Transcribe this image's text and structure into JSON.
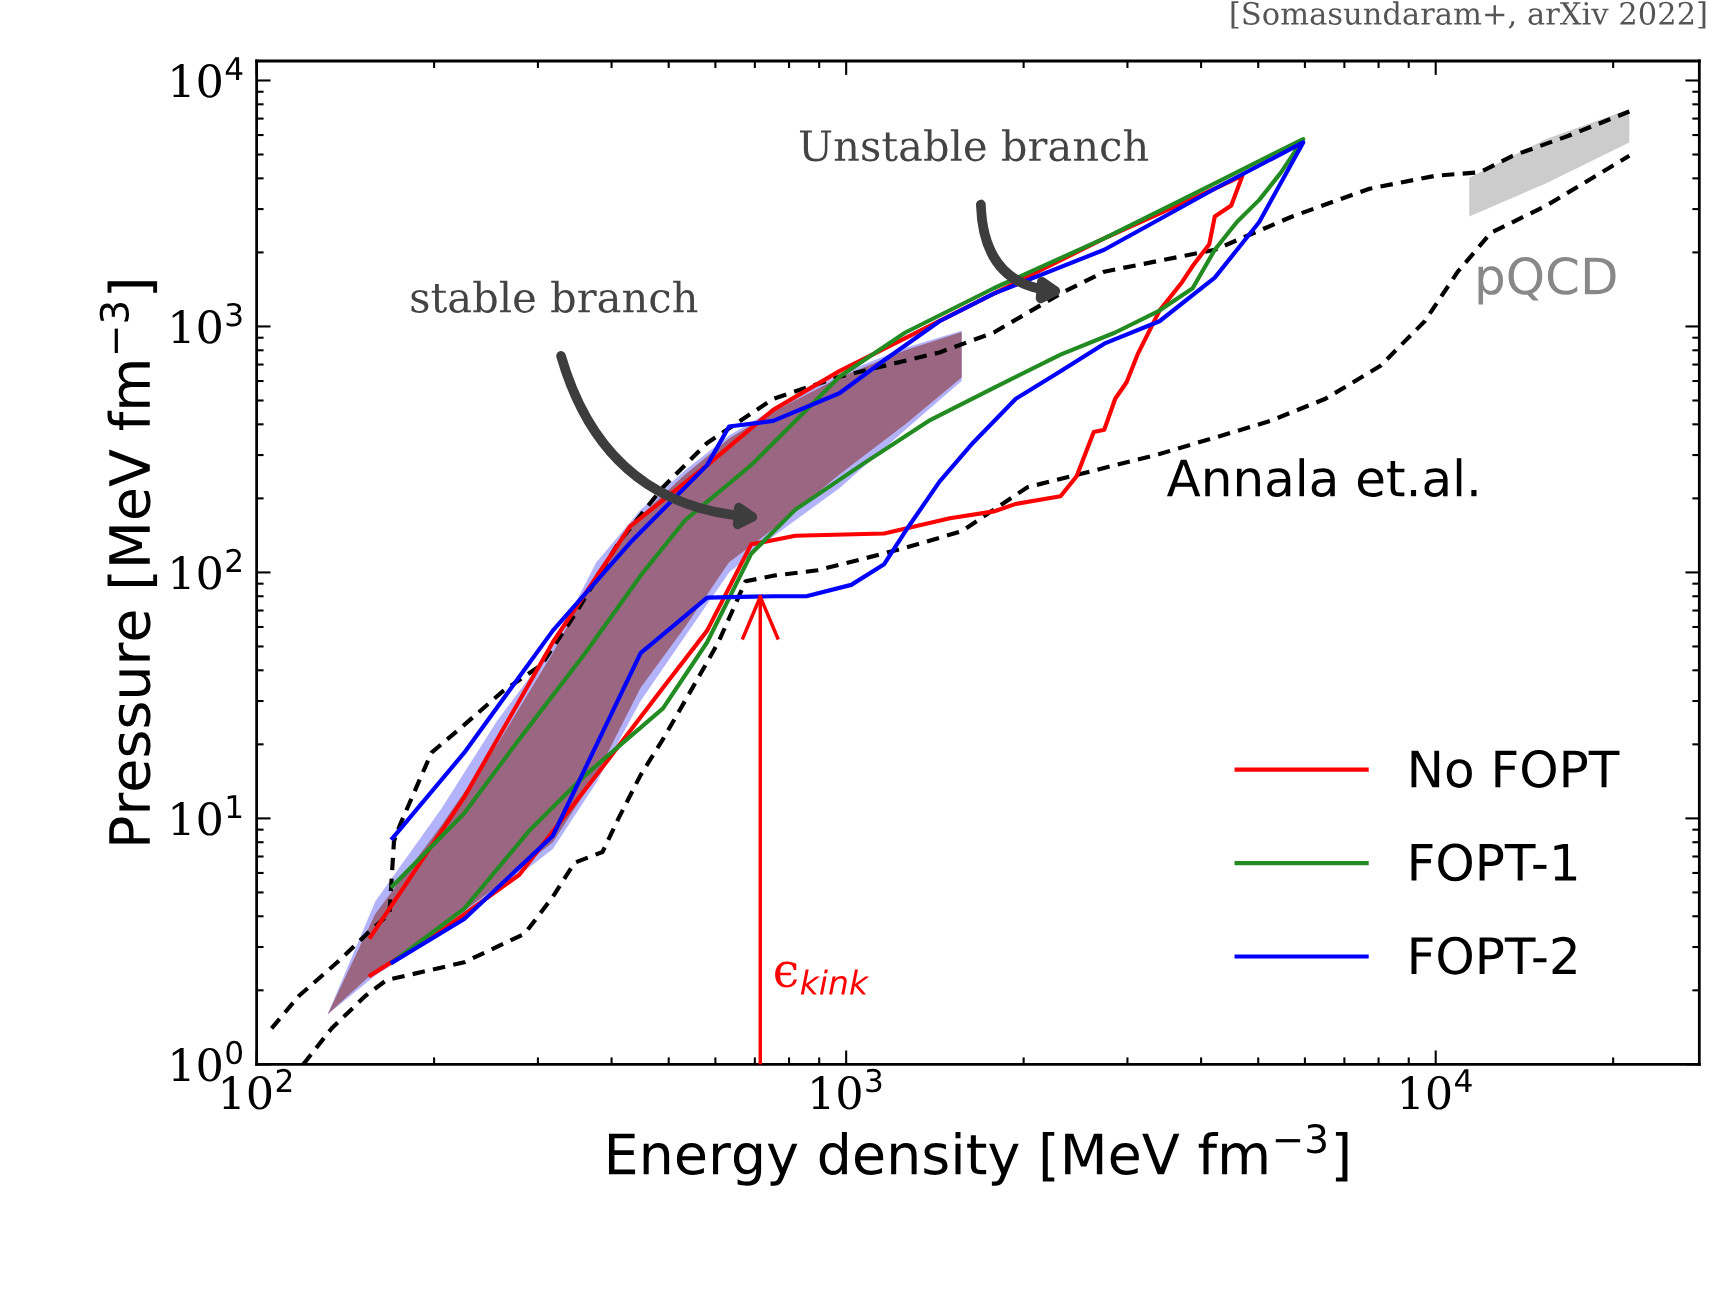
{
  "chart_data": {
    "type": "line",
    "xlabel": "Energy density [MeV fm$^{−3}$]",
    "ylabel": "Pressure [MeV fm$^{−3}$]",
    "log": "xy",
    "xlim": [
      100,
      28000
    ],
    "ylim": [
      1,
      12000
    ],
    "xticks": [
      {
        "value": 100,
        "label": "10$^{2}$"
      },
      {
        "value": 1000,
        "label": "10$^{3}$"
      },
      {
        "value": 10000,
        "label": "10$^{4}$"
      }
    ],
    "yticks": [
      {
        "value": 1,
        "label": "10$^{0}$"
      },
      {
        "value": 10,
        "label": "10$^{1}$"
      },
      {
        "value": 100,
        "label": "10$^{2}$"
      },
      {
        "value": 1000,
        "label": "10$^{3}$"
      },
      {
        "value": 10000,
        "label": "10$^{4}$"
      }
    ],
    "legend": "bottom right",
    "series": [
      {
        "type": "area",
        "color": "#b3b3fb",
        "x": [
          132,
          159,
          206,
          256,
          318,
          377,
          448,
          533,
          633,
          752,
          974,
          1260,
          1570,
          1570,
          1260,
          974,
          752,
          633,
          533,
          448,
          377,
          318,
          256,
          206,
          159
        ],
        "values": [
          1.6,
          2.3,
          3.4,
          5.0,
          7.5,
          14,
          30,
          55,
          100,
          140,
          220,
          380,
          600,
          960,
          820,
          640,
          460,
          360,
          260,
          180,
          110,
          50,
          25,
          11,
          4.6
        ]
      },
      {
        "type": "area",
        "color": "#9b6682",
        "x": [
          132,
          159,
          206,
          256,
          318,
          377,
          448,
          533,
          633,
          752,
          974,
          1260,
          1570,
          1570,
          1260,
          974,
          752,
          633,
          533,
          448,
          377,
          318,
          256,
          206,
          159
        ],
        "values": [
          1.6,
          2.4,
          3.6,
          5.3,
          8.0,
          15,
          34,
          60,
          110,
          150,
          250,
          400,
          620,
          950,
          800,
          620,
          450,
          350,
          250,
          170,
          100,
          47,
          20,
          9.4,
          4.1
        ]
      },
      {
        "type": "area",
        "name": "pQCD",
        "color": "#cccccc",
        "x": [
          11400,
          15400,
          21300,
          21300,
          15400,
          11400
        ],
        "values": [
          2800,
          3820,
          5600,
          7640,
          5780,
          4020
        ]
      },
      {
        "color": "#000000",
        "line_style": "dashed",
        "x": [
          106,
          118,
          137,
          156,
          168,
          171,
          175,
          198,
          225,
          262,
          304,
          346,
          411,
          489,
          581,
          752,
          974,
          1440,
          1780,
          2310,
          2740,
          4220,
          5710,
          7720,
          10000,
          11900,
          13500,
          16800,
          21300
        ],
        "values": [
          1.4,
          1.9,
          2.6,
          3.5,
          4.1,
          8.1,
          9.4,
          18.5,
          24,
          33,
          42,
          67,
          132,
          222,
          336,
          508,
          625,
          784,
          945,
          1360,
          1670,
          2050,
          2800,
          3630,
          4100,
          4240,
          4940,
          5960,
          7480
        ]
      },
      {
        "color": "#000000",
        "line_style": "dashed",
        "x": [
          120,
          134,
          153,
          166,
          225,
          285,
          318,
          346,
          386,
          411,
          448,
          489,
          545,
          607,
          675,
          752,
          894,
          1060,
          1260,
          1570,
          1780,
          2030,
          2410,
          3400,
          4220,
          5240,
          6500,
          8060,
          9580,
          10900,
          12400,
          15400,
          21300
        ],
        "values": [
          1.0,
          1.4,
          1.9,
          2.2,
          2.6,
          3.4,
          4.8,
          6.6,
          7.3,
          10,
          15,
          21,
          33,
          52,
          92,
          97,
          102,
          113,
          126,
          147,
          180,
          222,
          246,
          303,
          353,
          413,
          508,
          692,
          1050,
          1670,
          2400,
          3100,
          4940
        ]
      },
      {
        "name": "No FOPT",
        "color": "#ff0000",
        "x": [
          156,
          206,
          279,
          377,
          489,
          581,
          690,
          820,
          1160,
          1500,
          1780,
          1940,
          2310,
          2460,
          2630,
          2740,
          2860,
          2990,
          3120,
          3400,
          3710,
          3870,
          4130,
          4220,
          4500,
          4700,
          4220,
          2740,
          1780,
          1260,
          974,
          752,
          581,
          430,
          318,
          225,
          156
        ],
        "values": [
          2.3,
          3.5,
          5.9,
          15,
          34,
          58,
          130,
          141,
          144,
          166,
          177,
          190,
          204,
          246,
          372,
          380,
          508,
          593,
          768,
          1160,
          1510,
          1760,
          2160,
          2800,
          3100,
          4100,
          3630,
          2280,
          1360,
          897,
          658,
          458,
          273,
          154,
          52,
          12.2,
          3.3
        ]
      },
      {
        "name": "FOPT-1",
        "color": "#228b22",
        "x": [
          170,
          225,
          291,
          361,
          489,
          581,
          690,
          820,
          1060,
          1380,
          1780,
          2310,
          2860,
          3400,
          3870,
          4220,
          4600,
          5020,
          5470,
          5960,
          4220,
          2740,
          1780,
          1260,
          974,
          820,
          690,
          533,
          448,
          361,
          279,
          225,
          170
        ],
        "values": [
          2.6,
          4.3,
          9.0,
          15,
          28,
          52,
          119,
          180,
          273,
          413,
          563,
          768,
          945,
          1160,
          1430,
          2050,
          2660,
          3270,
          4240,
          5780,
          3820,
          2280,
          1430,
          945,
          625,
          413,
          273,
          163,
          97,
          47,
          21,
          10.5,
          5.3
        ]
      },
      {
        "name": "FOPT-2",
        "color": "#0000ff",
        "x": [
          170,
          225,
          318,
          448,
          581,
          752,
          856,
          1020,
          1160,
          1260,
          1440,
          1640,
          1940,
          2310,
          2740,
          3400,
          4220,
          5020,
          5960,
          4220,
          2740,
          1780,
          1440,
          1160,
          974,
          752,
          633,
          581,
          430,
          318,
          225,
          170
        ],
        "values": [
          2.6,
          3.9,
          8.5,
          47,
          79,
          80,
          80,
          89,
          108,
          147,
          234,
          336,
          508,
          658,
          851,
          1050,
          1580,
          2660,
          5600,
          3630,
          2050,
          1360,
          1050,
          729,
          535,
          413,
          392,
          273,
          132,
          58,
          18.5,
          8.3
        ]
      }
    ],
    "ref_lines": [
      {
        "axis": "x",
        "value": 715,
        "label": "ϵ$_{kink}$",
        "color": "#ff0000"
      }
    ],
    "annotations": [
      "[Somasundaram+, arXiv 2022]",
      "Annala et.al.",
      "stable branch",
      "Unstable branch"
    ]
  }
}
